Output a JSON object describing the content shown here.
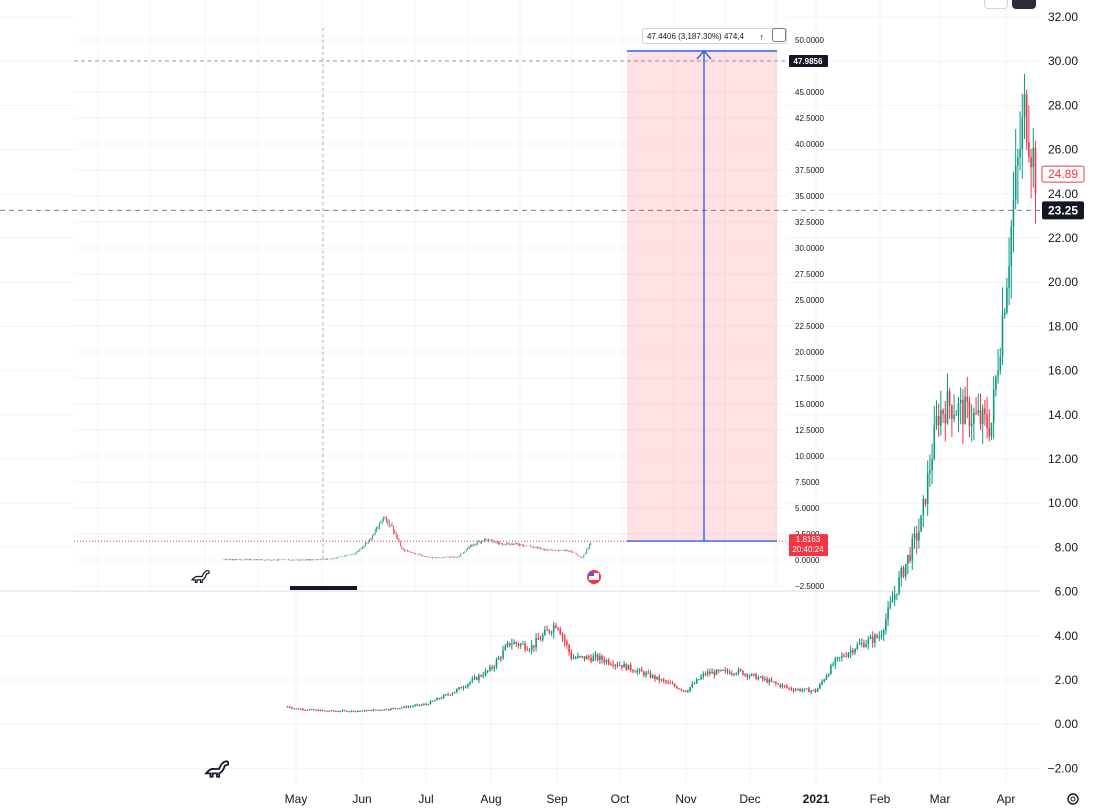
{
  "chart_data": [
    {
      "type": "candlestick",
      "title": "",
      "xlabel": "",
      "ylabel": "",
      "x_ticks": [
        "May",
        "Jun",
        "Jul",
        "Aug",
        "Sep",
        "Oct",
        "Nov",
        "Dec",
        "2021",
        "Feb",
        "Mar",
        "Apr"
      ],
      "y_ticks": [
        "32.00",
        "30.00",
        "28.00",
        "26.00",
        "24.00",
        "22.00",
        "20.00",
        "18.00",
        "16.00",
        "14.00",
        "12.00",
        "10.00",
        "8.00",
        "6.00",
        "4.00",
        "2.00",
        "0.00",
        "−2.00"
      ],
      "ylim": [
        -2,
        32
      ],
      "last_price": "24.89",
      "crosshair_price": "23.25",
      "series": [
        {
          "values_by_month": [
            [
              "2020-04-27",
              0.8
            ],
            [
              "2020-05-01",
              0.7
            ],
            [
              "2020-05-15",
              0.6
            ],
            [
              "2020-06-01",
              0.6
            ],
            [
              "2020-06-15",
              0.7
            ],
            [
              "2020-07-01",
              0.9
            ],
            [
              "2020-07-15",
              1.5
            ],
            [
              "2020-08-01",
              2.5
            ],
            [
              "2020-08-10",
              3.7
            ],
            [
              "2020-08-20",
              3.5
            ],
            [
              "2020-09-01",
              4.6
            ],
            [
              "2020-09-08",
              3.0
            ],
            [
              "2020-09-20",
              3.0
            ],
            [
              "2020-10-01",
              2.7
            ],
            [
              "2020-10-15",
              2.2
            ],
            [
              "2020-11-01",
              1.5
            ],
            [
              "2020-11-10",
              2.3
            ],
            [
              "2020-11-25",
              2.4
            ],
            [
              "2020-12-05",
              2.1
            ],
            [
              "2020-12-20",
              1.6
            ],
            [
              "2021-01-01",
              1.5
            ],
            [
              "2021-01-10",
              2.8
            ],
            [
              "2021-01-20",
              3.5
            ],
            [
              "2021-02-01",
              4.0
            ],
            [
              "2021-02-10",
              6.5
            ],
            [
              "2021-02-20",
              9.0
            ],
            [
              "2021-02-28",
              14.0
            ],
            [
              "2021-03-05",
              14.5
            ],
            [
              "2021-03-15",
              14.0
            ],
            [
              "2021-03-25",
              13.5
            ],
            [
              "2021-04-01",
              20.0
            ],
            [
              "2021-04-05",
              24.0
            ],
            [
              "2021-04-10",
              28.0
            ],
            [
              "2021-04-15",
              24.89
            ]
          ]
        }
      ]
    },
    {
      "type": "candlestick",
      "title": "",
      "y_ticks": [
        "50.0000",
        "45.0000",
        "42.5000",
        "40.0000",
        "37.5000",
        "35.0000",
        "32.5000",
        "30.0000",
        "27.5000",
        "25.0000",
        "22.5000",
        "20.0000",
        "17.5000",
        "15.0000",
        "12.5000",
        "10.0000",
        "7.5000",
        "5.0000",
        "2.5000",
        "0.0000",
        "−2.5000"
      ],
      "ylim": [
        -2.5,
        50
      ],
      "target_price": "47.9856",
      "current_price": "1.8163",
      "countdown": "20:40:24",
      "measure_label": "47.4406 (3,187.30%) 474,4",
      "series": [
        {
          "values_by_month": [
            [
              "May",
              0.0
            ],
            [
              "Jun",
              0.3
            ],
            [
              "Jun-mid",
              4.5
            ],
            [
              "Jul",
              0.8
            ],
            [
              "Aug",
              2.3
            ],
            [
              "Aug-end",
              1.8
            ],
            [
              "Sep",
              1.6
            ],
            [
              "Sep-end",
              1.8163
            ]
          ]
        }
      ]
    }
  ]
}
